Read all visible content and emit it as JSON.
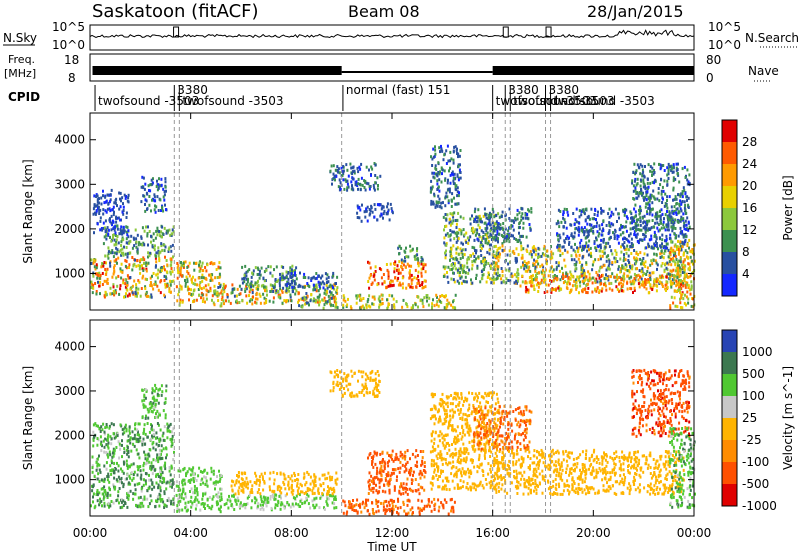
{
  "header": {
    "station": "Saskatoon (fitACF)",
    "beam": "Beam 08",
    "date": "28/Jan/2015"
  },
  "left_labels": {
    "nsky": "N.Sky",
    "freq_line1": "Freq.",
    "freq_line2": "[MHz]",
    "cpid": "CPID"
  },
  "right_labels": {
    "nsearch": "N.Search",
    "nave": "Nave"
  },
  "noise_axis": {
    "top": "10^5",
    "bottom": "10^0"
  },
  "freq_axis": {
    "left_top": "18",
    "left_bottom": "8",
    "right_top": "80",
    "right_bottom": "0"
  },
  "cpid_segments": [
    {
      "text": "twofsound -3503",
      "start_hour": 0.2,
      "pos": "low"
    },
    {
      "text": "3380",
      "start_hour": 3.35,
      "pos": "high"
    },
    {
      "text": "twofsound -3503",
      "start_hour": 3.55,
      "pos": "low"
    },
    {
      "text": "normal (fast) 151",
      "start_hour": 10.05,
      "pos": "high"
    },
    {
      "text": "twofsound -3503",
      "start_hour": 16.0,
      "pos": "low"
    },
    {
      "text": "3380",
      "start_hour": 16.5,
      "pos": "high"
    },
    {
      "text": "twofsound -3503",
      "start_hour": 16.7,
      "pos": "low"
    },
    {
      "text": "3380",
      "start_hour": 18.1,
      "pos": "high"
    },
    {
      "text": "twofsound -3503",
      "start_hour": 18.3,
      "pos": "low"
    }
  ],
  "mode_change_hours": [
    3.35,
    3.55,
    10.0,
    16.0,
    16.5,
    16.7,
    18.1,
    18.3
  ],
  "chart_data": [
    {
      "type": "heatmap",
      "quantity": "Power",
      "colorbar_label": "Power [dB]",
      "colorbar_ticks": [
        "28",
        "24",
        "20",
        "16",
        "12",
        "8",
        "4"
      ],
      "colors": [
        "#e00000",
        "#ff5a00",
        "#ff9a00",
        "#e8d000",
        "#8cc83c",
        "#3c9050",
        "#2850a0",
        "#1428ff"
      ],
      "ylabel": "Slant Range [km]",
      "yticks": [
        1000,
        2000,
        3000,
        4000
      ],
      "ylim": [
        180,
        4600
      ],
      "xlim_hours": [
        0,
        24
      ],
      "scatter_regions": [
        {
          "t": [
            0.0,
            3.3
          ],
          "r": [
            500,
            1400
          ],
          "value_range": [
            6,
            30
          ]
        },
        {
          "t": [
            0.5,
            3.3
          ],
          "r": [
            1400,
            2100
          ],
          "value_range": [
            4,
            16
          ]
        },
        {
          "t": [
            0.1,
            1.5
          ],
          "r": [
            1900,
            2900
          ],
          "value_range": [
            2,
            8
          ]
        },
        {
          "t": [
            2.0,
            3.0
          ],
          "r": [
            2400,
            3200
          ],
          "value_range": [
            3,
            10
          ]
        },
        {
          "t": [
            3.4,
            5.2
          ],
          "r": [
            300,
            1300
          ],
          "value_range": [
            8,
            26
          ]
        },
        {
          "t": [
            5.0,
            9.8
          ],
          "r": [
            350,
            800
          ],
          "value_range": [
            6,
            28
          ]
        },
        {
          "t": [
            6.0,
            8.2
          ],
          "r": [
            600,
            1200
          ],
          "value_range": [
            4,
            16
          ]
        },
        {
          "t": [
            7.5,
            9.8
          ],
          "r": [
            700,
            1050
          ],
          "value_range": [
            3,
            10
          ]
        },
        {
          "t": [
            8.2,
            9.8
          ],
          "r": [
            250,
            500
          ],
          "value_range": [
            6,
            20
          ]
        },
        {
          "t": [
            9.5,
            11.5
          ],
          "r": [
            2900,
            3500
          ],
          "value_range": [
            3,
            10
          ]
        },
        {
          "t": [
            10.5,
            12.0
          ],
          "r": [
            2200,
            2600
          ],
          "value_range": [
            3,
            8
          ]
        },
        {
          "t": [
            11.0,
            13.3
          ],
          "r": [
            700,
            1300
          ],
          "value_range": [
            18,
            32
          ]
        },
        {
          "t": [
            12.2,
            13.2
          ],
          "r": [
            1300,
            1650
          ],
          "value_range": [
            6,
            14
          ]
        },
        {
          "t": [
            10.0,
            14.5
          ],
          "r": [
            250,
            550
          ],
          "value_range": [
            8,
            24
          ]
        },
        {
          "t": [
            13.5,
            14.7
          ],
          "r": [
            2500,
            3900
          ],
          "value_range": [
            3,
            10
          ]
        },
        {
          "t": [
            14.0,
            16.2
          ],
          "r": [
            800,
            2400
          ],
          "value_range": [
            4,
            20
          ]
        },
        {
          "t": [
            15.2,
            17.5
          ],
          "r": [
            1700,
            2500
          ],
          "value_range": [
            3,
            12
          ]
        },
        {
          "t": [
            16.0,
            23.6
          ],
          "r": [
            800,
            1650
          ],
          "value_range": [
            4,
            24
          ]
        },
        {
          "t": [
            17.0,
            23.8
          ],
          "r": [
            600,
            1000
          ],
          "value_range": [
            14,
            30
          ]
        },
        {
          "t": [
            18.5,
            23.8
          ],
          "r": [
            1600,
            2500
          ],
          "value_range": [
            2,
            10
          ]
        },
        {
          "t": [
            21.5,
            23.8
          ],
          "r": [
            2000,
            3500
          ],
          "value_range": [
            3,
            12
          ]
        },
        {
          "t": [
            23.0,
            24.0
          ],
          "r": [
            250,
            1800
          ],
          "value_range": [
            10,
            26
          ]
        }
      ]
    },
    {
      "type": "heatmap",
      "quantity": "Velocity",
      "colorbar_label": "Velocity [m s^-1]",
      "colorbar_ticks": [
        "1000",
        "500",
        "100",
        "25",
        "-25",
        "-100",
        "-500",
        "-1000"
      ],
      "colors": [
        "#2844b4",
        "#3c7850",
        "#50c832",
        "#c8c8c8",
        "#ffb400",
        "#ff8c00",
        "#ff5000",
        "#e00000"
      ],
      "ylabel": "Slant Range [km]",
      "xlabel": "Time UT",
      "xticks": [
        "00:00",
        "04:00",
        "08:00",
        "12:00",
        "16:00",
        "20:00",
        "00:00"
      ],
      "yticks": [
        1000,
        2000,
        3000,
        4000
      ],
      "ylim": [
        180,
        4600
      ],
      "xlim_hours": [
        0,
        24
      ],
      "scatter_regions": [
        {
          "t": [
            0.0,
            3.3
          ],
          "r": [
            400,
            2300
          ],
          "value_range": [
            30,
            800
          ]
        },
        {
          "t": [
            2.0,
            3.0
          ],
          "r": [
            2400,
            3200
          ],
          "value_range": [
            30,
            600
          ]
        },
        {
          "t": [
            3.4,
            5.2
          ],
          "r": [
            300,
            1300
          ],
          "value_range": [
            30,
            400
          ]
        },
        {
          "t": [
            5.0,
            9.8
          ],
          "r": [
            350,
            700
          ],
          "value_range": [
            30,
            300
          ]
        },
        {
          "t": [
            5.5,
            9.8
          ],
          "r": [
            700,
            1200
          ],
          "value_range": [
            -20,
            20
          ]
        },
        {
          "t": [
            9.5,
            11.5
          ],
          "r": [
            2900,
            3500
          ],
          "value_range": [
            -20,
            20
          ]
        },
        {
          "t": [
            11.0,
            13.3
          ],
          "r": [
            700,
            1700
          ],
          "value_range": [
            -300,
            -40
          ]
        },
        {
          "t": [
            10.0,
            14.5
          ],
          "r": [
            250,
            600
          ],
          "value_range": [
            -300,
            -40
          ]
        },
        {
          "t": [
            13.5,
            16.2
          ],
          "r": [
            800,
            3000
          ],
          "value_range": [
            -20,
            20
          ]
        },
        {
          "t": [
            15.2,
            17.5
          ],
          "r": [
            1700,
            2700
          ],
          "value_range": [
            -200,
            -30
          ]
        },
        {
          "t": [
            16.0,
            23.6
          ],
          "r": [
            700,
            1700
          ],
          "value_range": [
            -20,
            20
          ]
        },
        {
          "t": [
            21.5,
            23.8
          ],
          "r": [
            2000,
            3500
          ],
          "value_range": [
            -600,
            -30
          ]
        },
        {
          "t": [
            23.0,
            24.0
          ],
          "r": [
            400,
            2200
          ],
          "value_range": [
            30,
            600
          ]
        }
      ]
    }
  ]
}
